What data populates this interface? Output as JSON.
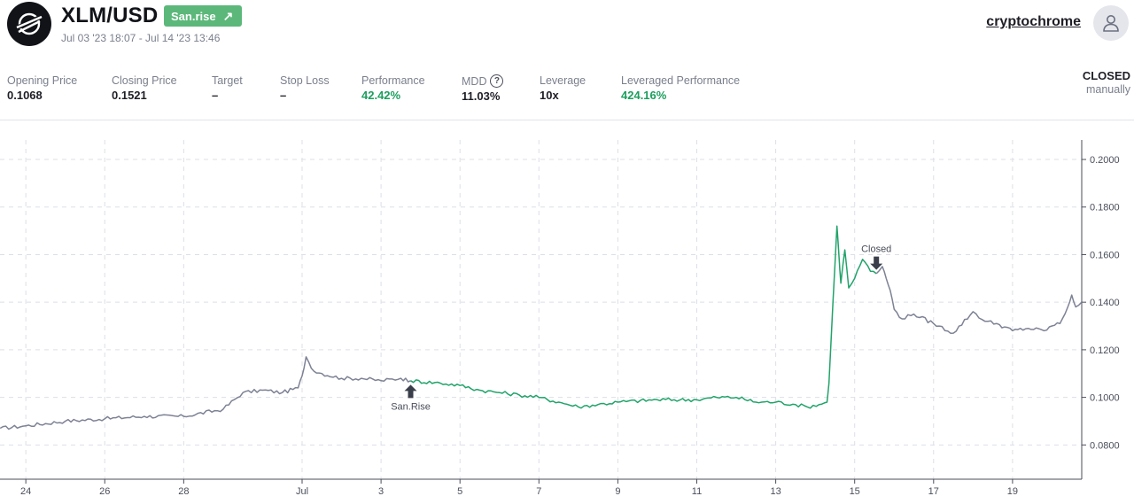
{
  "header": {
    "pair": "XLM/USD",
    "badge_label": "San.rise",
    "badge_arrow": "↗",
    "dates": "Jul 03 '23 18:07 - Jul 14 '23 13:46",
    "username": "cryptochrome"
  },
  "stats": {
    "opening_price": {
      "label": "Opening Price",
      "value": "0.1068"
    },
    "closing_price": {
      "label": "Closing Price",
      "value": "0.1521"
    },
    "target": {
      "label": "Target",
      "value": "–"
    },
    "stop_loss": {
      "label": "Stop Loss",
      "value": "–"
    },
    "performance": {
      "label": "Performance",
      "value": "42.42%"
    },
    "mdd": {
      "label": "MDD",
      "value": "11.03%",
      "info_icon": "?"
    },
    "leverage": {
      "label": "Leverage",
      "value": "10x"
    },
    "leveraged_performance": {
      "label": "Leveraged Performance",
      "value": "424.16%"
    },
    "status": "CLOSED",
    "status_detail": "manually"
  },
  "colors": {
    "positive": "#1b9e5e",
    "badge": "#5cb87a",
    "line_outside": "#7d8294",
    "line_trade": "#21a36a"
  },
  "chart_data": {
    "type": "line",
    "xlabel": "",
    "ylabel": "",
    "x_tick_labels": [
      "24",
      "26",
      "28",
      "Jul",
      "3",
      "5",
      "7",
      "9",
      "11",
      "13",
      "15",
      "17",
      "19"
    ],
    "y_tick_labels": [
      "0.2000",
      "0.1800",
      "0.1600",
      "0.1400",
      "0.1200",
      "0.1000",
      "0.0800"
    ],
    "y_ticks": [
      0.2,
      0.18,
      0.16,
      0.14,
      0.12,
      0.1,
      0.08
    ],
    "ylim": [
      0.0656,
      0.2082
    ],
    "x_range_days": [
      -7.65,
      20.0
    ],
    "grid": true,
    "series": [
      {
        "x": [
          -7.65,
          -7.0,
          -6.0,
          -5.0,
          -4.0,
          -3.0,
          -2.0,
          -1.5,
          -1.0,
          -0.5,
          -0.1,
          0.0,
          0.1,
          0.3,
          0.5,
          1.0,
          1.5,
          2.0,
          2.5,
          2.75
        ],
        "y": [
          0.087,
          0.088,
          0.09,
          0.091,
          0.092,
          0.092,
          0.095,
          0.102,
          0.103,
          0.102,
          0.104,
          0.109,
          0.117,
          0.111,
          0.11,
          0.108,
          0.108,
          0.107,
          0.108,
          0.107
        ]
      },
      {
        "x": [
          2.75,
          3.5,
          4.0,
          4.5,
          5.0,
          5.5,
          6.0,
          6.5,
          7.0,
          7.5,
          8.0,
          9.0,
          10.0,
          10.5,
          11.0,
          11.5,
          12.0,
          12.5,
          12.8,
          13.1,
          13.3,
          13.35,
          13.45,
          13.55,
          13.6,
          13.65,
          13.75,
          13.85,
          14.0,
          14.2,
          14.4,
          14.55
        ],
        "y": [
          0.107,
          0.106,
          0.105,
          0.103,
          0.102,
          0.101,
          0.1,
          0.098,
          0.096,
          0.097,
          0.098,
          0.099,
          0.099,
          0.1,
          0.1,
          0.098,
          0.098,
          0.097,
          0.096,
          0.097,
          0.098,
          0.106,
          0.14,
          0.172,
          0.16,
          0.148,
          0.162,
          0.146,
          0.15,
          0.158,
          0.153,
          0.152
        ]
      },
      {
        "x": [
          14.55,
          14.7,
          14.8,
          14.9,
          15.0,
          15.2,
          15.5,
          16.0,
          16.5,
          17.0,
          17.3,
          17.6,
          18.0,
          18.4,
          18.8,
          19.0,
          19.2,
          19.4,
          19.5,
          19.6,
          19.75
        ],
        "y": [
          0.152,
          0.155,
          0.15,
          0.145,
          0.137,
          0.133,
          0.135,
          0.131,
          0.127,
          0.136,
          0.132,
          0.131,
          0.128,
          0.129,
          0.128,
          0.13,
          0.131,
          0.138,
          0.143,
          0.138,
          0.14
        ]
      }
    ],
    "annotations": [
      {
        "label": "San.Rise",
        "x": 2.75,
        "y": 0.1068
      },
      {
        "label": "Closed",
        "x": 14.55,
        "y": 0.1521
      }
    ]
  }
}
